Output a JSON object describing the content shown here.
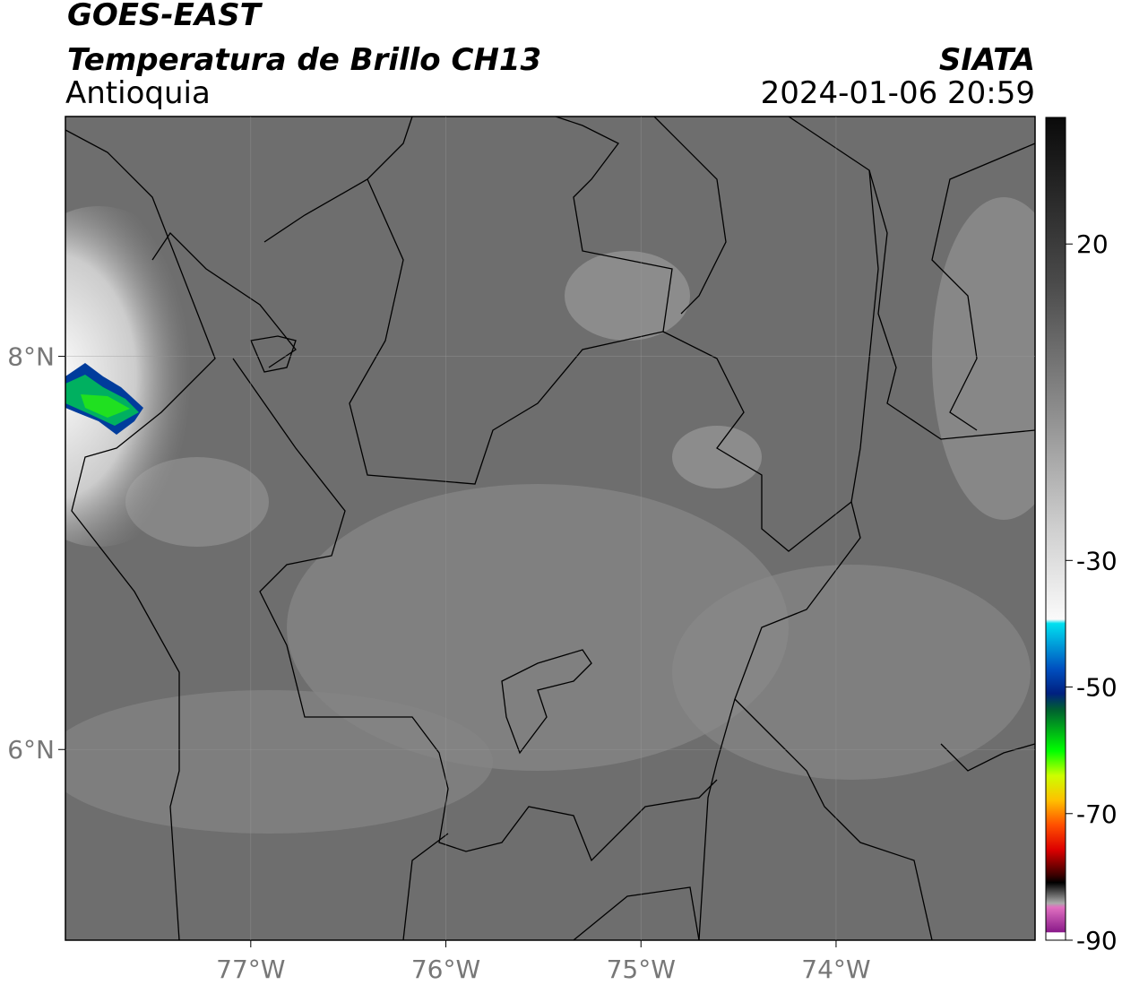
{
  "header": {
    "satellite": "GOES-EAST",
    "product": "Temperatura de Brillo CH13",
    "region": "Antioquia",
    "source": "SIATA",
    "datetime": "2024-01-06 20:59"
  },
  "map": {
    "xlim": [
      -77.95,
      -72.98
    ],
    "ylim": [
      5.03,
      9.22
    ],
    "xticks": [
      {
        "value": -77,
        "label": "77°W"
      },
      {
        "value": -76,
        "label": "76°W"
      },
      {
        "value": -75,
        "label": "75°W"
      },
      {
        "value": -74,
        "label": "74°W"
      }
    ],
    "yticks": [
      {
        "value": 8,
        "label": "8°N"
      },
      {
        "value": 6,
        "label": "6°N"
      }
    ],
    "grid": true
  },
  "colorbar": {
    "lim": [
      -90,
      40
    ],
    "ticks": [
      20,
      -30,
      -50,
      -70,
      -90
    ]
  }
}
